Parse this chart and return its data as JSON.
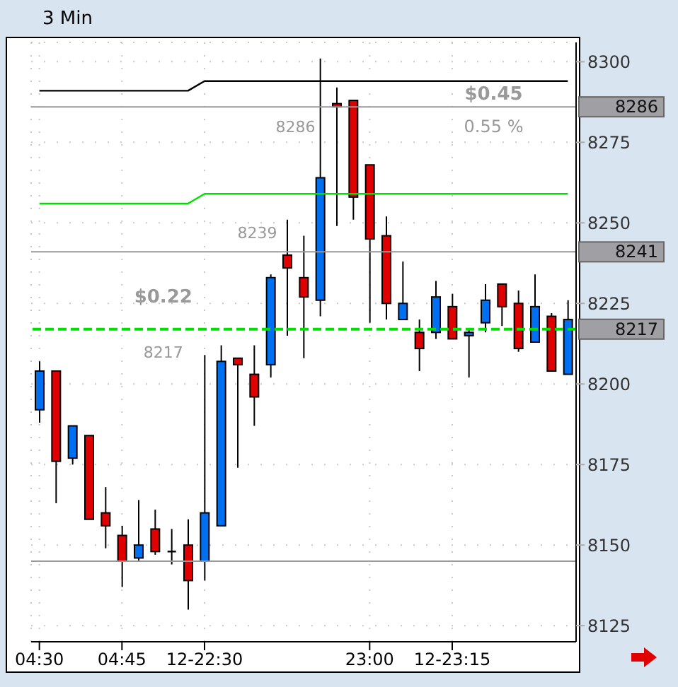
{
  "chart_data": {
    "type": "candlestick",
    "title": "3 Min",
    "categories": [
      "04:30",
      null,
      null,
      null,
      null,
      "04:45",
      null,
      null,
      null,
      null,
      "12-22:30",
      null,
      null,
      null,
      null,
      null,
      null,
      null,
      null,
      null,
      "23:00",
      null,
      null,
      null,
      null,
      "12-23:15",
      null,
      null,
      null,
      null,
      null,
      null,
      null
    ],
    "ohlc": [
      [
        8192,
        8207,
        8188,
        8204
      ],
      [
        8204,
        8204,
        8163,
        8176
      ],
      [
        8177,
        8187,
        8175,
        8187
      ],
      [
        8184,
        8184,
        8158,
        8158
      ],
      [
        8160,
        8168,
        8149,
        8156
      ],
      [
        8153,
        8156,
        8137,
        8145
      ],
      [
        8146,
        8164,
        8145,
        8150
      ],
      [
        8155,
        8161,
        8147,
        8148
      ],
      [
        8148,
        8155,
        8144,
        8148
      ],
      [
        8150,
        8158,
        8130,
        8139
      ],
      [
        8145,
        8209,
        8139,
        8160
      ],
      [
        8156,
        8212,
        8156,
        8207
      ],
      [
        8208,
        8208,
        8174,
        8206
      ],
      [
        8203,
        8212,
        8187,
        8196
      ],
      [
        8206,
        8234,
        8202,
        8233
      ],
      [
        8240,
        8251,
        8215,
        8236
      ],
      [
        8233,
        8246,
        8208,
        8227
      ],
      [
        8226,
        8301,
        8221,
        8264
      ],
      [
        8287,
        8292,
        8249,
        8286
      ],
      [
        8288,
        8288,
        8251,
        8258
      ],
      [
        8268,
        8268,
        8219,
        8245
      ],
      [
        8246,
        8252,
        8220,
        8225
      ],
      [
        8220,
        8238,
        8220,
        8225
      ],
      [
        8216,
        8220,
        8204,
        8211
      ],
      [
        8216,
        8232,
        8214,
        8227
      ],
      [
        8224,
        8228,
        8214,
        8214
      ],
      [
        8215,
        8217,
        8202,
        8216
      ],
      [
        8219,
        8231,
        8216,
        8226
      ],
      [
        8231,
        8231,
        8218,
        8224
      ],
      [
        8225,
        8229,
        8210,
        8211
      ],
      [
        8213,
        8234,
        8213,
        8224
      ],
      [
        8221,
        8222,
        8204,
        8204
      ],
      [
        8203,
        8226,
        8203,
        8220
      ]
    ],
    "colors": [
      "#0070f0",
      "#e00000",
      "#0070f0",
      "#e00000",
      "#e00000",
      "#e00000",
      "#0070f0",
      "#e00000",
      "#000000",
      "#e00000",
      "#0070f0",
      "#0070f0",
      "#e00000",
      "#e00000",
      "#0070f0",
      "#e00000",
      "#e00000",
      "#0070f0",
      "#e00000",
      "#e00000",
      "#e00000",
      "#e00000",
      "#0070f0",
      "#e00000",
      "#0070f0",
      "#e00000",
      "#0070f0",
      "#0070f0",
      "#e00000",
      "#e00000",
      "#0070f0",
      "#e00000",
      "#0070f0"
    ],
    "series": [
      {
        "type": "line",
        "color": "#000000",
        "values": [
          8291,
          8291,
          8291,
          8291,
          8291,
          8291,
          8291,
          8291,
          8291,
          8291,
          8294,
          8294,
          8294,
          8294,
          8294,
          8294,
          8294,
          8294,
          8294,
          8294,
          8294,
          8294,
          8294,
          8294,
          8294,
          8294,
          8294,
          8294,
          8294,
          8294,
          8294,
          8294,
          8294
        ]
      },
      {
        "type": "line",
        "color": "#00e000",
        "values": [
          8256,
          8256,
          8256,
          8256,
          8256,
          8256,
          8256,
          8256,
          8256,
          8256,
          8259,
          8259,
          8259,
          8259,
          8259,
          8259,
          8259,
          8259,
          8259,
          8259,
          8259,
          8259,
          8259,
          8259,
          8259,
          8259,
          8259,
          8259,
          8259,
          8259,
          8259,
          8259,
          8259
        ]
      }
    ],
    "ref_lines": [
      {
        "axis": "y",
        "value": 8286,
        "label": "8286",
        "color": "#999999"
      },
      {
        "axis": "y",
        "value": 8241,
        "label": "8241",
        "color": "#999999"
      },
      {
        "axis": "y",
        "value": 8217,
        "label": "8217",
        "color": "#00e000",
        "line_style": "dashed"
      },
      {
        "axis": "y",
        "value": 8145,
        "color": "#999999"
      }
    ],
    "annotations": [
      "$0.45",
      "0.55 %",
      "8286",
      "8239",
      "$0.22",
      "8217"
    ],
    "ylim": [
      8120,
      8306
    ],
    "yticks": [
      8125,
      8150,
      8175,
      8200,
      8225,
      8250,
      8275,
      8300
    ],
    "grid": true
  }
}
